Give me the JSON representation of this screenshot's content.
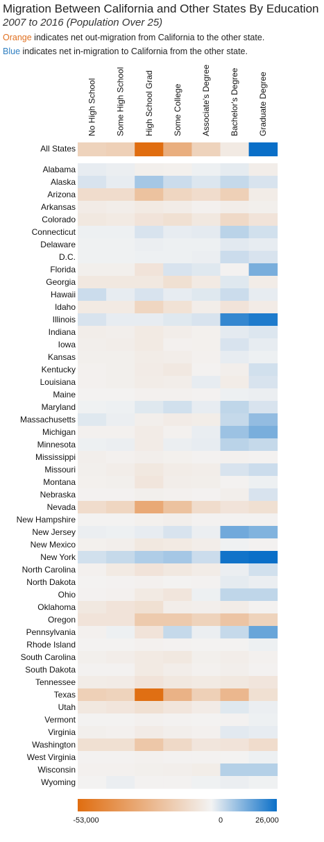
{
  "title": "Migration Between California and Other States By Education",
  "subtitle": "2007 to 2016 (Population Over 25)",
  "notes": {
    "line1_color_word": "Orange",
    "line1_rest": " indicates net out-migration from California to the other state.",
    "line2_color_word": "Blue",
    "line2_rest": " indicates net in-migration to California from the other state."
  },
  "colors": {
    "orange_extreme": "#e06d10",
    "neutral": "#f3f3f3",
    "blue_extreme": "#0a6fc8"
  },
  "chart_data": {
    "type": "heatmap",
    "columns": [
      "No High School",
      "Some High School",
      "High School Grad",
      "Some College",
      "Associate's Degree",
      "Bachelor's Degree",
      "Graduate Degree"
    ],
    "summary_row": {
      "label": "All States",
      "values": [
        -8000,
        -9000,
        -53000,
        -22000,
        -8000,
        -1500,
        26000
      ]
    },
    "rows": [
      {
        "label": "Alabama",
        "values": [
          500,
          300,
          -500,
          -400,
          200,
          600,
          -800
        ]
      },
      {
        "label": "Alaska",
        "values": [
          1500,
          500,
          6000,
          2500,
          1200,
          3000,
          1500
        ]
      },
      {
        "label": "Arizona",
        "values": [
          -5000,
          -5000,
          -14000,
          -7000,
          -5000,
          -9000,
          -1000
        ]
      },
      {
        "label": "Arkansas",
        "values": [
          -1200,
          -800,
          -1500,
          -1000,
          -300,
          -800,
          -500
        ]
      },
      {
        "label": "Colorado",
        "values": [
          -2000,
          -1500,
          -3000,
          -4000,
          -2000,
          -6000,
          -3000
        ]
      },
      {
        "label": "Connecticut",
        "values": [
          200,
          200,
          1500,
          500,
          700,
          4000,
          2000
        ]
      },
      {
        "label": "Delaware",
        "values": [
          100,
          100,
          300,
          200,
          200,
          800,
          500
        ]
      },
      {
        "label": "D.C.",
        "values": [
          100,
          100,
          200,
          200,
          300,
          2500,
          1500
        ]
      },
      {
        "label": "Florida",
        "values": [
          -500,
          -500,
          -3000,
          1500,
          1000,
          -200,
          11000
        ]
      },
      {
        "label": "Georgia",
        "values": [
          -2000,
          -2000,
          -2000,
          -4000,
          -1500,
          1000,
          -1000
        ]
      },
      {
        "label": "Hawaii",
        "values": [
          2500,
          500,
          1500,
          500,
          1000,
          2500,
          500
        ]
      },
      {
        "label": "Idaho",
        "values": [
          -1500,
          -1500,
          -7000,
          -3500,
          -800,
          -3000,
          -1200
        ]
      },
      {
        "label": "Illinois",
        "values": [
          1500,
          500,
          500,
          1000,
          1500,
          20000,
          23000
        ]
      },
      {
        "label": "Indiana",
        "values": [
          -800,
          -600,
          -1500,
          -800,
          -400,
          700,
          1200
        ]
      },
      {
        "label": "Iowa",
        "values": [
          -600,
          -800,
          -1500,
          -300,
          -400,
          1500,
          500
        ]
      },
      {
        "label": "Kansas",
        "values": [
          -500,
          -500,
          -1000,
          -800,
          -300,
          500,
          200
        ]
      },
      {
        "label": "Kentucky",
        "values": [
          -300,
          -500,
          -1200,
          -1800,
          -200,
          -600,
          2000
        ]
      },
      {
        "label": "Louisiana",
        "values": [
          -300,
          -500,
          -1000,
          -800,
          500,
          -1000,
          1500
        ]
      },
      {
        "label": "Maine",
        "values": [
          -100,
          -100,
          -300,
          -300,
          -200,
          200,
          300
        ]
      },
      {
        "label": "Maryland",
        "values": [
          100,
          200,
          1000,
          2000,
          500,
          3500,
          1500
        ]
      },
      {
        "label": "Massachusetts",
        "values": [
          1000,
          300,
          -600,
          -1200,
          -900,
          3000,
          8000
        ]
      },
      {
        "label": "Michigan",
        "values": [
          -300,
          -300,
          -1200,
          -300,
          400,
          7000,
          11000
        ]
      },
      {
        "label": "Minnesota",
        "values": [
          200,
          300,
          -1200,
          300,
          500,
          4000,
          3000
        ]
      },
      {
        "label": "Mississippi",
        "values": [
          -600,
          -300,
          -600,
          -400,
          -200,
          -300,
          -200
        ]
      },
      {
        "label": "Missouri",
        "values": [
          -500,
          -800,
          -2000,
          -1000,
          -800,
          1500,
          2500
        ]
      },
      {
        "label": "Montana",
        "values": [
          -400,
          -500,
          -2500,
          -800,
          -700,
          -200,
          200
        ]
      },
      {
        "label": "Nebraska",
        "values": [
          -200,
          -200,
          -500,
          -300,
          -200,
          -600,
          1500
        ]
      },
      {
        "label": "Nevada",
        "values": [
          -5000,
          -7000,
          -24000,
          -14000,
          -5000,
          -3000,
          -4000
        ]
      },
      {
        "label": "New Hampshire",
        "values": [
          -100,
          -100,
          -400,
          -600,
          -200,
          -200,
          -200
        ]
      },
      {
        "label": "New Jersey",
        "values": [
          300,
          200,
          500,
          1500,
          300,
          12000,
          10000
        ]
      },
      {
        "label": "New Mexico",
        "values": [
          -400,
          -600,
          -2000,
          -1500,
          -800,
          100,
          -200
        ]
      },
      {
        "label": "New York",
        "values": [
          2000,
          3000,
          5000,
          6000,
          2500,
          25000,
          26000
        ]
      },
      {
        "label": "North Carolina",
        "values": [
          -300,
          -1500,
          -3000,
          -2000,
          -1000,
          300,
          2000
        ]
      },
      {
        "label": "North Dakota",
        "values": [
          -100,
          -200,
          -300,
          -100,
          -200,
          600,
          300
        ]
      },
      {
        "label": "Ohio",
        "values": [
          -200,
          -300,
          -1500,
          -2500,
          200,
          3500,
          3500
        ]
      },
      {
        "label": "Oklahoma",
        "values": [
          -2000,
          -3000,
          -4000,
          -800,
          -600,
          -1000,
          -200
        ]
      },
      {
        "label": "Oregon",
        "values": [
          -3000,
          -3000,
          -11000,
          -11000,
          -8000,
          -13000,
          -8000
        ]
      },
      {
        "label": "Pennsylvania",
        "values": [
          -300,
          200,
          -3000,
          3000,
          300,
          3000,
          13000
        ]
      },
      {
        "label": "Rhode Island",
        "values": [
          -100,
          -100,
          -300,
          -200,
          -100,
          -100,
          200
        ]
      },
      {
        "label": "South Carolina",
        "values": [
          -500,
          -800,
          -1500,
          -2000,
          -500,
          -800,
          -300
        ]
      },
      {
        "label": "South Dakota",
        "values": [
          -200,
          -200,
          -1500,
          -800,
          -300,
          -600,
          -200
        ]
      },
      {
        "label": "Tennessee",
        "values": [
          -1000,
          -1200,
          -3000,
          -2000,
          -1500,
          -2000,
          -2500
        ]
      },
      {
        "label": "Texas",
        "values": [
          -9000,
          -8000,
          -52000,
          -20000,
          -9000,
          -18000,
          -4000
        ]
      },
      {
        "label": "Utah",
        "values": [
          -2000,
          -2500,
          -4000,
          -2500,
          -1200,
          1000,
          300
        ]
      },
      {
        "label": "Vermont",
        "values": [
          -100,
          -100,
          -300,
          -200,
          -100,
          -200,
          200
        ]
      },
      {
        "label": "Virginia",
        "values": [
          -500,
          -300,
          -1200,
          -600,
          -300,
          800,
          500
        ]
      },
      {
        "label": "Washington",
        "values": [
          -4000,
          -4000,
          -12000,
          -6000,
          -2500,
          -3000,
          -5000
        ]
      },
      {
        "label": "West Virginia",
        "values": [
          -200,
          -200,
          -300,
          -200,
          -200,
          -100,
          200
        ]
      },
      {
        "label": "Wisconsin",
        "values": [
          -300,
          -300,
          -500,
          -600,
          -900,
          4500,
          4500
        ]
      },
      {
        "label": "Wyoming",
        "values": [
          -100,
          300,
          -200,
          -200,
          100,
          300,
          100
        ]
      }
    ],
    "color_scale": {
      "min": -53000,
      "mid": 0,
      "max": 26000
    },
    "legend_ticks": [
      "-53,000",
      "0",
      "26,000"
    ]
  }
}
